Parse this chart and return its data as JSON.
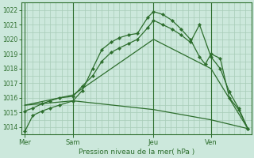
{
  "bg_color": "#cce8dc",
  "grid_color": "#a8ccb8",
  "line_color": "#2d6e2d",
  "marker_color": "#2d6e2d",
  "xlabel": "Pression niveau de la mer( hPa )",
  "xlabel_color": "#2d6e2d",
  "tick_color": "#2d6e2d",
  "spine_color": "#2d6e2d",
  "ylim": [
    1013.5,
    1022.5
  ],
  "yticks": [
    1014,
    1015,
    1016,
    1017,
    1018,
    1019,
    1020,
    1021,
    1022
  ],
  "xlim": [
    0,
    20
  ],
  "xtick_labels": [
    "Mer",
    "Sam",
    "Jeu",
    "Ven"
  ],
  "xtick_positions": [
    0.3,
    4.5,
    11.5,
    16.5
  ],
  "vline_positions": [
    0.3,
    4.5,
    11.5,
    16.5
  ],
  "series": [
    {
      "x": [
        0.3,
        1.0,
        1.8,
        2.5,
        3.3,
        4.5,
        5.3,
        6.2,
        7.0,
        7.8,
        8.5,
        9.3,
        10.1,
        11.0,
        11.5,
        12.3,
        13.1,
        13.9,
        14.7,
        15.5,
        16.0,
        16.5,
        17.3,
        18.1,
        18.9,
        19.7
      ],
      "y": [
        1013.7,
        1014.8,
        1015.1,
        1015.3,
        1015.5,
        1015.8,
        1016.5,
        1018.0,
        1019.3,
        1019.8,
        1020.1,
        1020.3,
        1020.4,
        1021.5,
        1021.9,
        1021.7,
        1021.3,
        1020.7,
        1020.0,
        1018.8,
        1018.3,
        1019.0,
        1018.7,
        1016.0,
        1015.2,
        1013.9
      ]
    },
    {
      "x": [
        0.3,
        1.0,
        1.8,
        2.5,
        3.3,
        4.5,
        5.3,
        6.2,
        7.0,
        7.8,
        8.5,
        9.3,
        10.1,
        11.0,
        11.5,
        12.3,
        13.1,
        13.9,
        14.7,
        15.5,
        16.5,
        17.3,
        18.1,
        18.9,
        19.7
      ],
      "y": [
        1015.1,
        1015.3,
        1015.6,
        1015.8,
        1016.0,
        1016.1,
        1016.8,
        1017.5,
        1018.5,
        1019.1,
        1019.4,
        1019.7,
        1020.0,
        1020.8,
        1021.3,
        1021.0,
        1020.7,
        1020.3,
        1019.8,
        1021.0,
        1018.8,
        1018.0,
        1016.4,
        1015.3,
        1013.9
      ]
    },
    {
      "x": [
        0.3,
        4.5,
        11.5,
        16.5,
        19.7
      ],
      "y": [
        1015.5,
        1016.2,
        1020.0,
        1018.0,
        1013.9
      ]
    },
    {
      "x": [
        0.3,
        4.5,
        11.5,
        16.5,
        19.7
      ],
      "y": [
        1015.5,
        1015.8,
        1015.2,
        1014.5,
        1013.9
      ]
    }
  ]
}
